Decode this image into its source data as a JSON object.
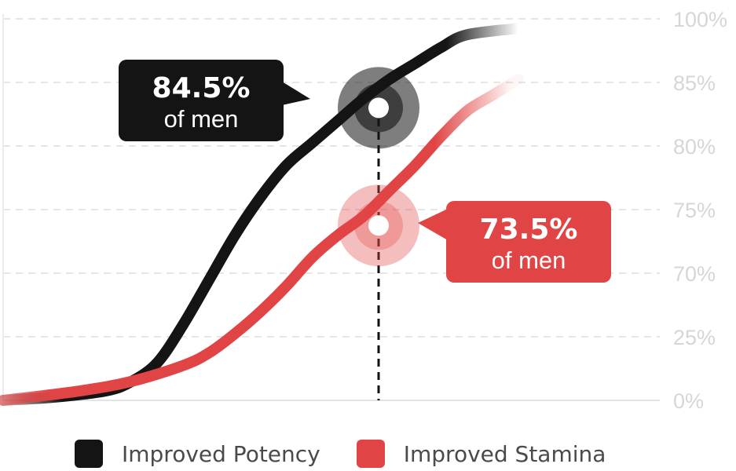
{
  "chart_data": {
    "type": "line",
    "y_tick_labels": [
      "0%",
      "25%",
      "70%",
      "75%",
      "80%",
      "85%",
      "100%"
    ],
    "grid": true,
    "legend_position": "bottom",
    "series": [
      {
        "name": "Improved Potency",
        "color": "#141414",
        "highlight": {
          "value_label": "84.5%",
          "sub_label": "of men",
          "tick_index": 4.6
        },
        "points": [
          [
            0.0,
            0.0
          ],
          [
            0.1,
            0.05
          ],
          [
            0.2,
            0.15
          ],
          [
            0.25,
            0.3
          ],
          [
            0.3,
            0.6
          ],
          [
            0.35,
            1.2
          ],
          [
            0.4,
            1.9
          ],
          [
            0.45,
            2.6
          ],
          [
            0.5,
            3.2
          ],
          [
            0.55,
            3.7
          ],
          [
            0.6,
            4.05
          ],
          [
            0.65,
            4.4
          ],
          [
            0.7,
            4.75
          ],
          [
            0.75,
            5.05
          ],
          [
            0.8,
            5.3
          ],
          [
            0.85,
            5.55
          ],
          [
            0.9,
            5.75
          ],
          [
            1.0,
            5.85
          ]
        ]
      },
      {
        "name": "Improved Stamina",
        "color": "#e14444",
        "highlight": {
          "value_label": "73.5%",
          "sub_label": "of men",
          "tick_index": 2.75
        },
        "points": [
          [
            0.0,
            0.0
          ],
          [
            0.15,
            0.15
          ],
          [
            0.25,
            0.3
          ],
          [
            0.35,
            0.55
          ],
          [
            0.4,
            0.75
          ],
          [
            0.45,
            1.05
          ],
          [
            0.5,
            1.4
          ],
          [
            0.55,
            1.8
          ],
          [
            0.6,
            2.25
          ],
          [
            0.65,
            2.6
          ],
          [
            0.7,
            2.9
          ],
          [
            0.75,
            3.3
          ],
          [
            0.8,
            3.7
          ],
          [
            0.85,
            4.15
          ],
          [
            0.9,
            4.55
          ],
          [
            0.95,
            4.8
          ],
          [
            1.0,
            5.05
          ]
        ]
      }
    ]
  }
}
